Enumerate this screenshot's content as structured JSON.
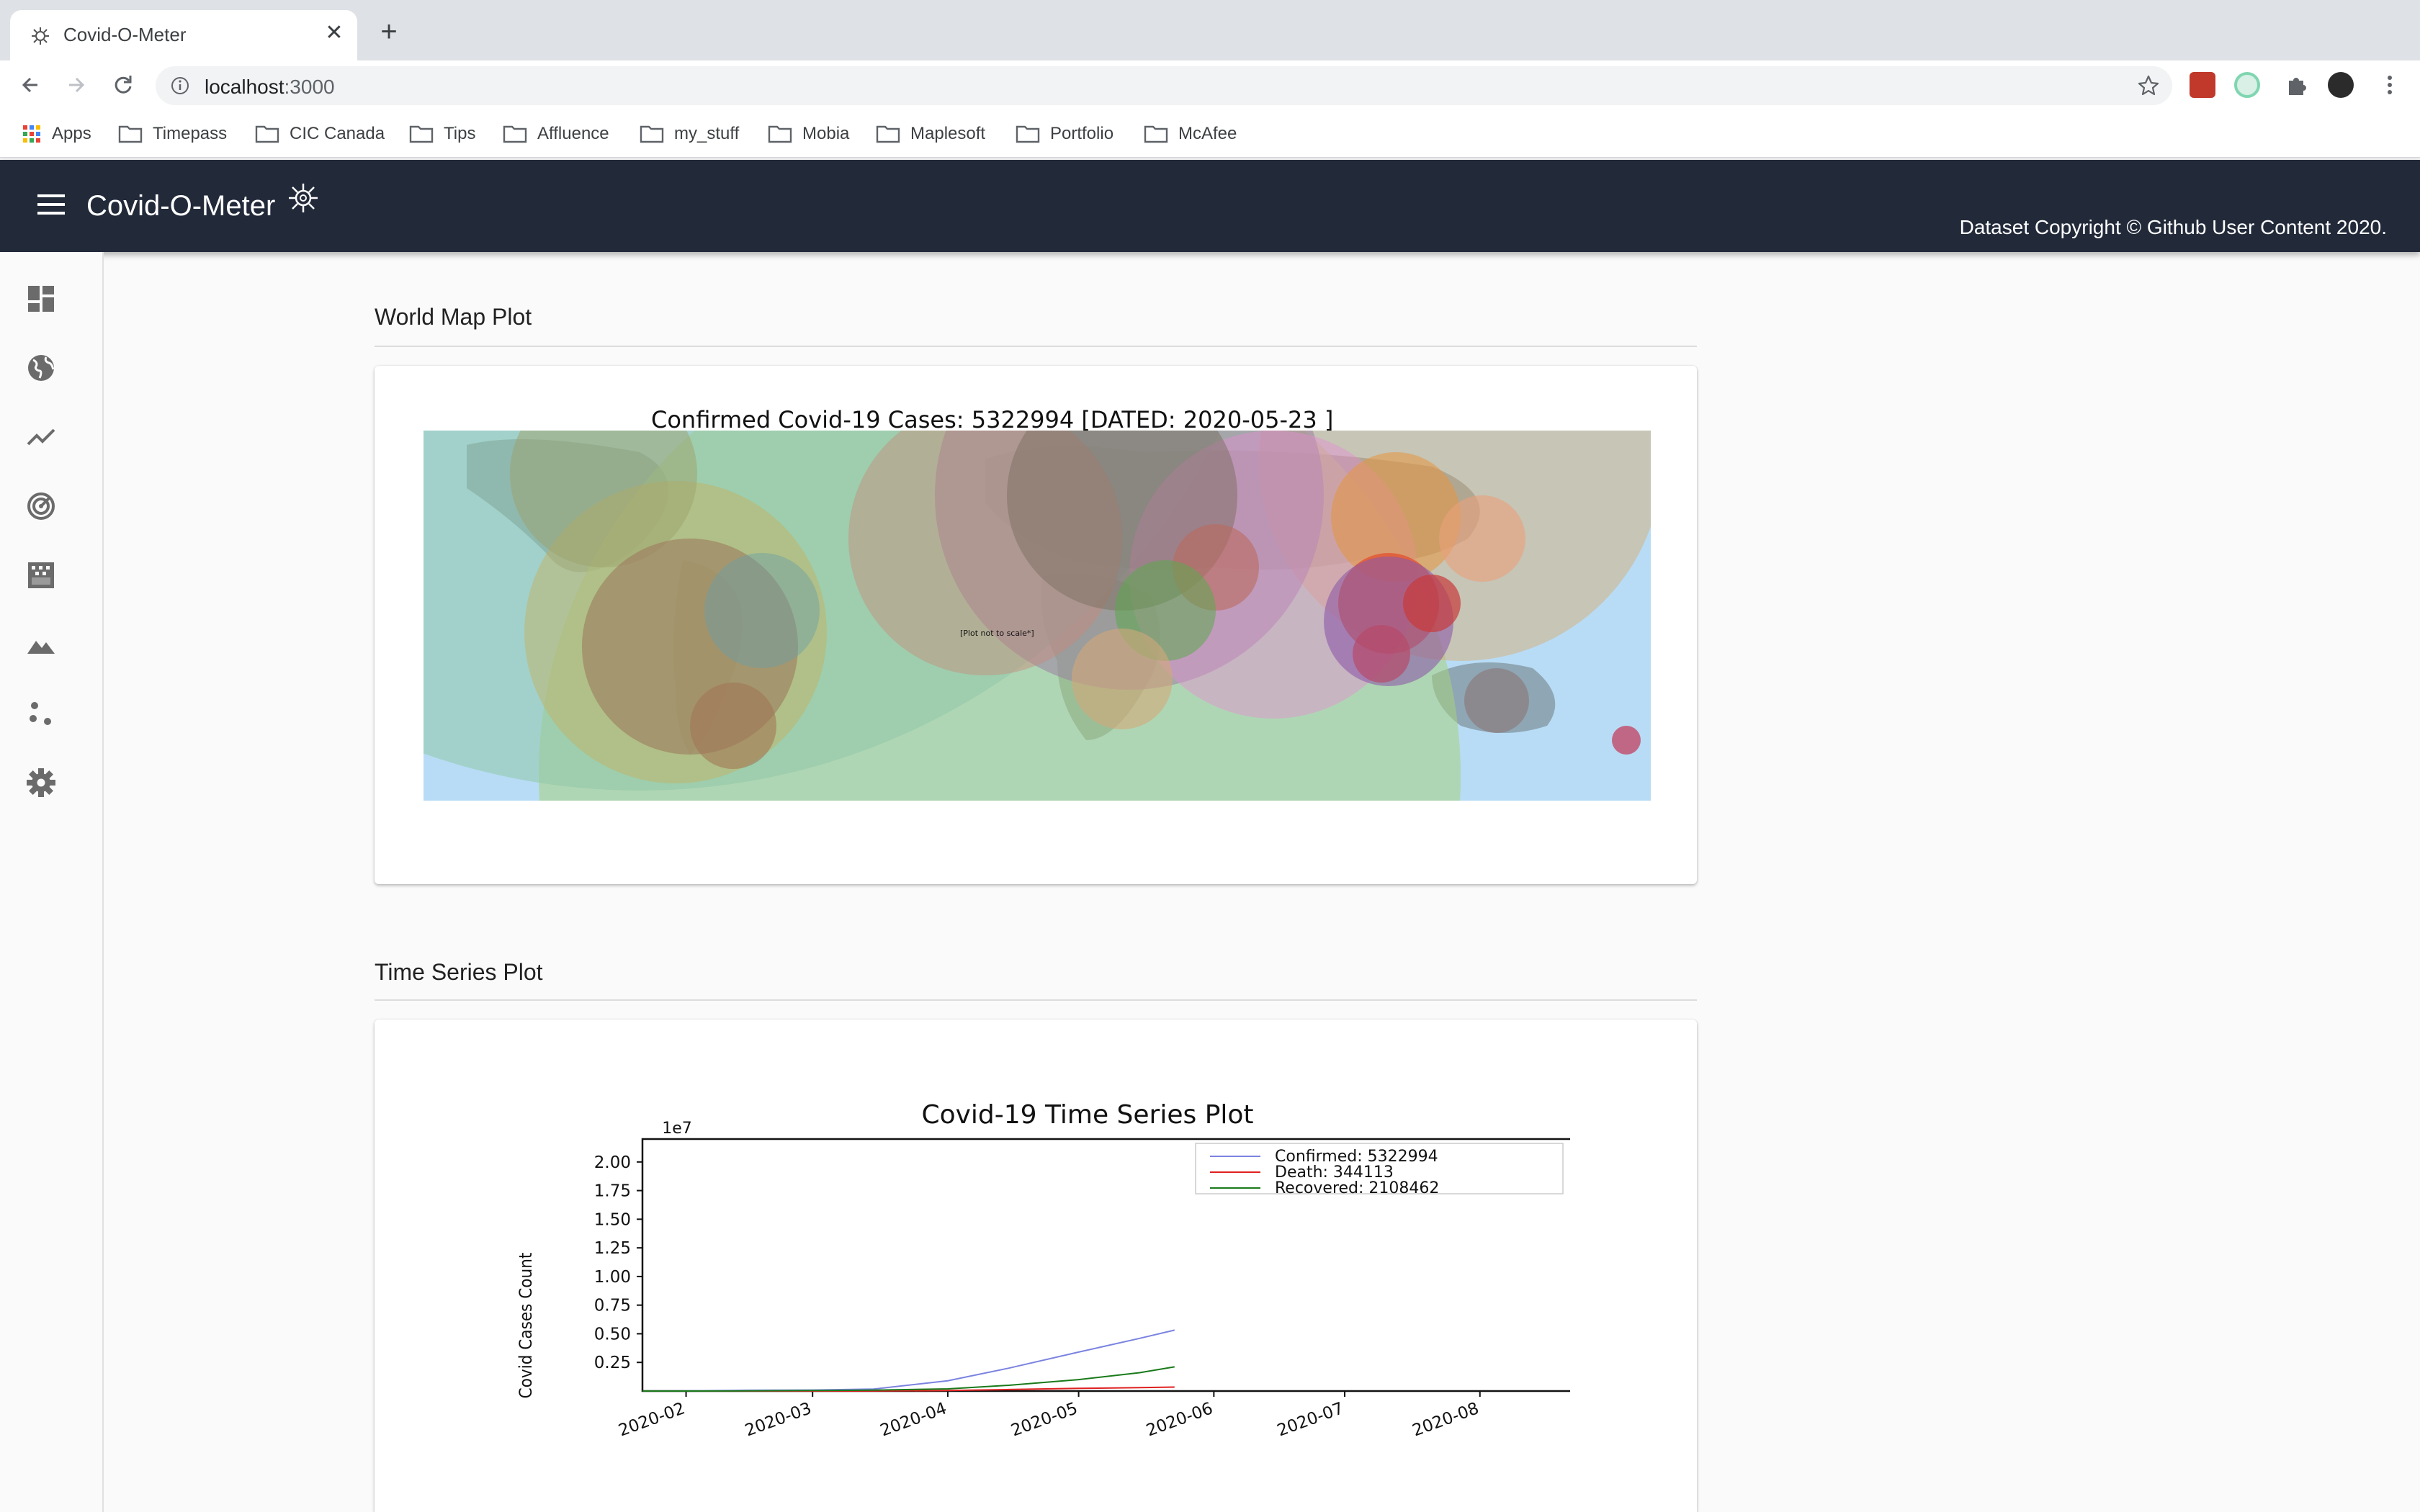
{
  "browser": {
    "tab_title": "Covid-O-Meter",
    "url_host": "localhost",
    "url_port": ":3000",
    "bookmarks": [
      "Apps",
      "Timepass",
      "CIC Canada",
      "Tips",
      "Affluence",
      "my_stuff",
      "Mobia",
      "Maplesoft",
      "Portfolio",
      "McAfee"
    ]
  },
  "app": {
    "title": "Covid-O-Meter",
    "copyright": "Dataset Copyright © Github User Content 2020.",
    "nav_icons": [
      "dashboard-icon",
      "globe-icon",
      "line-chart-icon",
      "radar-icon",
      "heatmap-icon",
      "terrain-icon",
      "scatter-icon",
      "settings-icon"
    ]
  },
  "world_map": {
    "section_title": "World Map Plot",
    "plot_title": "Confirmed Covid-19 Cases: 5322994 [DATED: 2020-05-23 ]",
    "note": "[Plot not to scale*]"
  },
  "time_series": {
    "section_title": "Time Series Plot"
  },
  "chart_data": {
    "type": "line",
    "title": "Covid-19 Time Series Plot",
    "xlabel": "",
    "ylabel": "Covid Cases Count",
    "y_offset_label": "1e7",
    "x_ticks": [
      "2020-02",
      "2020-03",
      "2020-04",
      "2020-05",
      "2020-06",
      "2020-07",
      "2020-08"
    ],
    "y_ticks": [
      "0.25",
      "0.50",
      "0.75",
      "1.00",
      "1.25",
      "1.50",
      "1.75",
      "2.00"
    ],
    "xlim": [
      "2020-01-22",
      "2020-08-23"
    ],
    "ylim": [
      0,
      2.2
    ],
    "legend_position": "top-right",
    "grid": false,
    "x": [
      "2020-01-22",
      "2020-02-01",
      "2020-02-15",
      "2020-03-01",
      "2020-03-15",
      "2020-04-01",
      "2020-04-15",
      "2020-05-01",
      "2020-05-15",
      "2020-05-23"
    ],
    "series": [
      {
        "name": "Confirmed: 5322994",
        "color": "#7b83e0",
        "values": [
          0.0001,
          0.001,
          0.007,
          0.009,
          0.017,
          0.09,
          0.2,
          0.34,
          0.46,
          0.532
        ]
      },
      {
        "name": "Death: 344113",
        "color": "#e02020",
        "values": [
          0,
          3e-05,
          0.00017,
          0.0003,
          0.0007,
          0.0047,
          0.013,
          0.023,
          0.03,
          0.0344
        ]
      },
      {
        "name": "Recovered: 2108462",
        "color": "#1a7a1a",
        "values": [
          0,
          5e-05,
          0.001,
          0.0045,
          0.0075,
          0.019,
          0.05,
          0.1,
          0.16,
          0.211
        ]
      }
    ]
  }
}
